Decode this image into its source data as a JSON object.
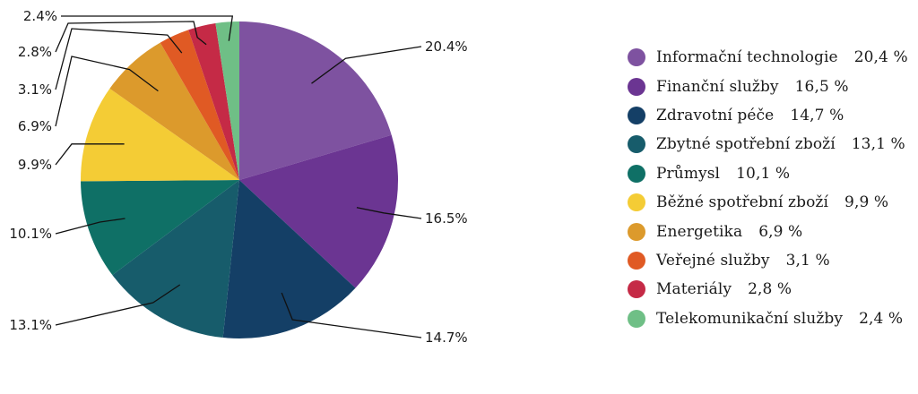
{
  "chart_data": {
    "type": "pie",
    "slices": [
      {
        "label": "Informační technologie",
        "value": 20.4,
        "pie_label": "20.4%",
        "legend_value": "20,4 %",
        "color": "#7e52a0"
      },
      {
        "label": "Finanční služby",
        "value": 16.5,
        "pie_label": "16.5%",
        "legend_value": "16,5 %",
        "color": "#6b3592"
      },
      {
        "label": "Zdravotní péče",
        "value": 14.7,
        "pie_label": "14.7%",
        "legend_value": "14,7 %",
        "color": "#143f66"
      },
      {
        "label": "Zbytné spotřební zboží",
        "value": 13.1,
        "pie_label": "13.1%",
        "legend_value": "13,1 %",
        "color": "#175c6b"
      },
      {
        "label": "Průmysl",
        "value": 10.1,
        "pie_label": "10.1%",
        "legend_value": "10,1 %",
        "color": "#0f7066"
      },
      {
        "label": "Běžné spotřební zboží",
        "value": 9.9,
        "pie_label": "9.9%",
        "legend_value": "9,9 %",
        "color": "#f4cc35"
      },
      {
        "label": "Energetika",
        "value": 6.9,
        "pie_label": "6.9%",
        "legend_value": "6,9 %",
        "color": "#dc9a2c"
      },
      {
        "label": "Veřejné služby",
        "value": 3.1,
        "pie_label": "3.1%",
        "legend_value": "3,1 %",
        "color": "#e05a24"
      },
      {
        "label": "Materiály",
        "value": 2.8,
        "pie_label": "2.8%",
        "legend_value": "2,8 %",
        "color": "#c52a46"
      },
      {
        "label": "Telekomunikační služby",
        "value": 2.4,
        "pie_label": "2.4%",
        "legend_value": "2,4 %",
        "color": "#6fbf86"
      }
    ],
    "legend_position": "right"
  }
}
